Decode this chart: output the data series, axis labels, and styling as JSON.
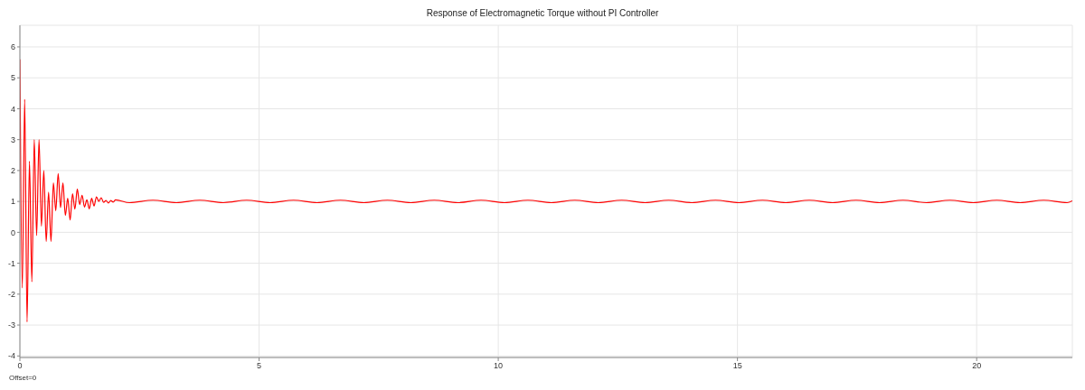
{
  "chart_data": {
    "type": "line",
    "title": "Response of Electromagnetic Torque without PI Controller",
    "annotations": [
      "Offset=0"
    ],
    "x": [
      0,
      0.05,
      0.1,
      0.15,
      0.2,
      0.25,
      0.3,
      0.35,
      0.4,
      0.45,
      0.5,
      0.55,
      0.6,
      0.65,
      0.7,
      0.75,
      0.8,
      0.85,
      0.9,
      0.95,
      1.0,
      1.05,
      1.1,
      1.15,
      1.2,
      1.25,
      1.3,
      1.35,
      1.4,
      1.45,
      1.5,
      1.55,
      1.6,
      1.65,
      1.7,
      1.75,
      1.8,
      1.85,
      1.9,
      1.95,
      2.0,
      2.29,
      2.78,
      3.27,
      3.76,
      4.25,
      4.74,
      5.23,
      5.72,
      6.21,
      6.7,
      7.19,
      7.68,
      8.17,
      8.66,
      9.15,
      9.64,
      10.13,
      10.62,
      11.11,
      11.6,
      12.09,
      12.58,
      13.07,
      13.56,
      14.05,
      14.54,
      15.03,
      15.52,
      16.01,
      16.5,
      16.99,
      17.48,
      17.97,
      18.46,
      18.95,
      19.44,
      19.93,
      20.42,
      20.91,
      21.4,
      21.89,
      22
    ],
    "series": [
      {
        "color": "#ff0000",
        "values": [
          5.6,
          -1.8,
          4.3,
          -2.9,
          2.3,
          -1.6,
          3.0,
          -0.1,
          3.0,
          0.2,
          2.0,
          -0.3,
          1.3,
          -0.3,
          1.6,
          0.7,
          1.9,
          0.8,
          1.6,
          0.55,
          1.1,
          0.4,
          1.25,
          0.75,
          1.4,
          0.9,
          1.2,
          0.82,
          1.05,
          0.76,
          1.1,
          0.85,
          1.15,
          1.0,
          1.12,
          0.97,
          1.03,
          0.95,
          1.03,
          0.98,
          1.05,
          0.96,
          1.04,
          0.96,
          1.04,
          0.96,
          1.04,
          0.96,
          1.04,
          0.96,
          1.04,
          0.96,
          1.04,
          0.96,
          1.04,
          0.96,
          1.04,
          0.96,
          1.04,
          0.96,
          1.04,
          0.96,
          1.04,
          0.96,
          1.04,
          0.96,
          1.04,
          0.96,
          1.04,
          0.96,
          1.04,
          0.96,
          1.04,
          0.96,
          1.04,
          0.96,
          1.04,
          0.96,
          1.04,
          0.96,
          1.04,
          0.96,
          1.02
        ]
      }
    ],
    "xlim": [
      0,
      22
    ],
    "xticks": [
      0,
      5,
      10,
      15,
      20
    ],
    "ylim": [
      -4.05,
      6.7
    ],
    "yticks": [
      -4,
      -3,
      -2,
      -1,
      0,
      1,
      2,
      3,
      4,
      5,
      6
    ],
    "grid": true,
    "legend": false,
    "marker": "none",
    "line_style": "solid"
  }
}
